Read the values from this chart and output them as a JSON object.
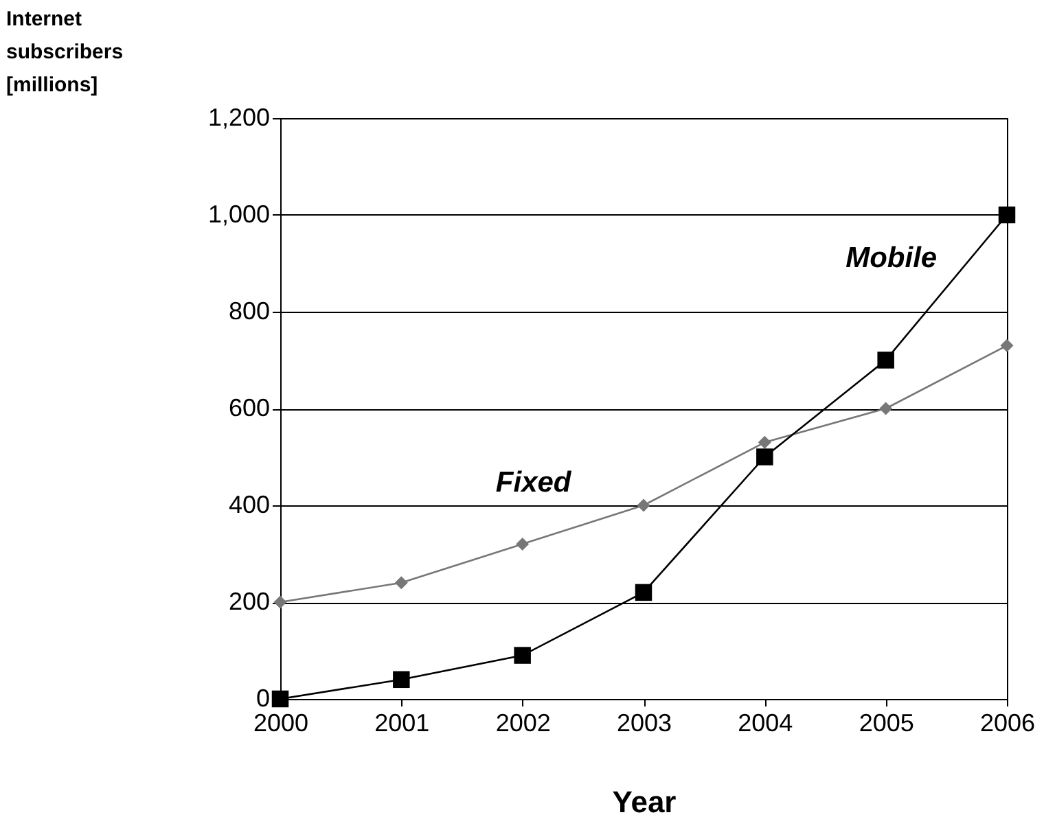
{
  "chart_data": {
    "type": "line",
    "xlabel": "Year",
    "ylabel": "Internet subscribers [millions]",
    "x": [
      2000,
      2001,
      2002,
      2003,
      2004,
      2005,
      2006
    ],
    "series": [
      {
        "name": "Fixed",
        "color": "#777777",
        "marker": "diamond",
        "values": [
          200,
          240,
          320,
          400,
          530,
          600,
          730
        ]
      },
      {
        "name": "Mobile",
        "color": "#000000",
        "marker": "square",
        "values": [
          0,
          40,
          90,
          220,
          500,
          700,
          1000
        ]
      }
    ],
    "xlim": [
      2000,
      2006
    ],
    "xticks": [
      2000,
      2001,
      2002,
      2003,
      2004,
      2005,
      2006
    ],
    "ylim": [
      0,
      1200
    ],
    "yticks": [
      0,
      200,
      400,
      600,
      800,
      {
        "value": 1000,
        "label": "1,000"
      },
      {
        "value": 1200,
        "label": "1,200"
      }
    ],
    "grid": "y",
    "legend": false,
    "line_style": "solid"
  }
}
